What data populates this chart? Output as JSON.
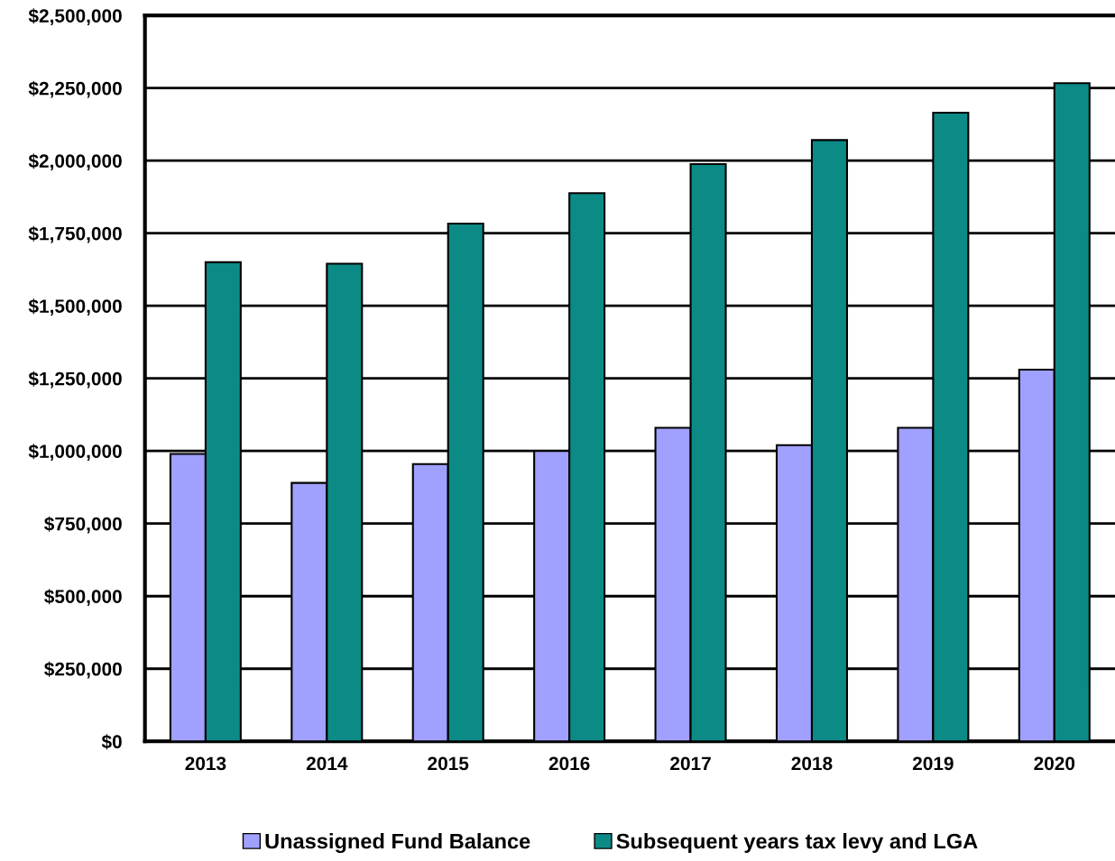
{
  "chart_data": {
    "type": "bar",
    "categories": [
      "2013",
      "2014",
      "2015",
      "2016",
      "2017",
      "2018",
      "2019",
      "2020"
    ],
    "series": [
      {
        "name": "Unassigned Fund Balance",
        "color": "#a0a0ff",
        "values": [
          990000,
          890000,
          955000,
          1000000,
          1080000,
          1020000,
          1080000,
          1280000
        ]
      },
      {
        "name": "Subsequent years tax levy and LGA",
        "color": "#0c8a86",
        "values": [
          1650000,
          1645000,
          1783000,
          1888000,
          1988000,
          2071000,
          2165000,
          2267000
        ]
      }
    ],
    "ylim": [
      0,
      2500000
    ],
    "yticks": [
      {
        "value": 0,
        "label": "$0"
      },
      {
        "value": 250000,
        "label": "$250,000"
      },
      {
        "value": 500000,
        "label": "$500,000"
      },
      {
        "value": 750000,
        "label": "$750,000"
      },
      {
        "value": 1000000,
        "label": "$1,000,000"
      },
      {
        "value": 1250000,
        "label": "$1,250,000"
      },
      {
        "value": 1500000,
        "label": "$1,500,000"
      },
      {
        "value": 1750000,
        "label": "$1,750,000"
      },
      {
        "value": 2000000,
        "label": "$2,000,000"
      },
      {
        "value": 2250000,
        "label": "$2,250,000"
      },
      {
        "value": 2500000,
        "label": "$2,500,000"
      }
    ],
    "grid": "y",
    "legend": "bottom"
  }
}
